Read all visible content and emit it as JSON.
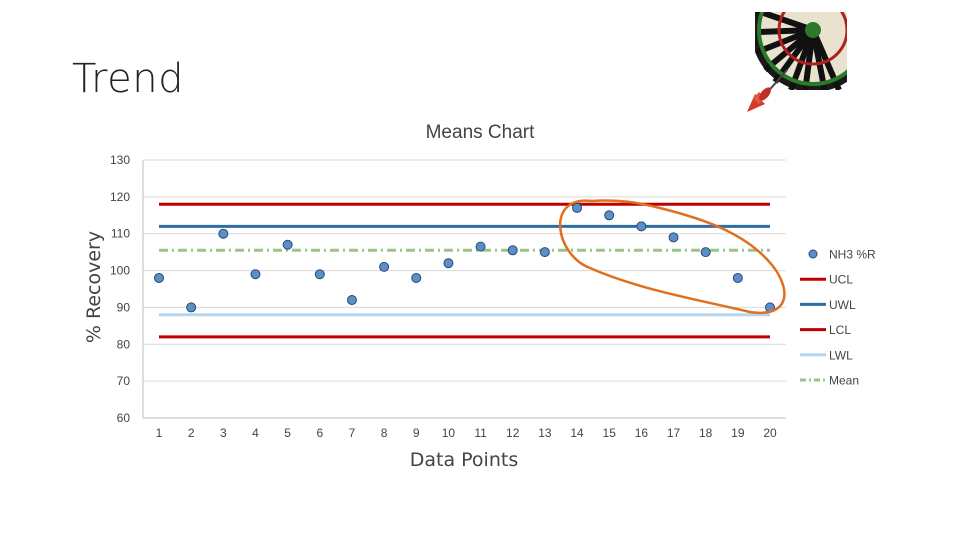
{
  "slide": {
    "title": "Trend"
  },
  "chart_data": {
    "type": "line",
    "title": "Means Chart",
    "xlabel": "Data Points",
    "ylabel": "% Recovery",
    "ylim": [
      60,
      130
    ],
    "yticks": [
      60,
      70,
      80,
      90,
      100,
      110,
      120,
      130
    ],
    "categories": [
      "1",
      "2",
      "3",
      "4",
      "5",
      "6",
      "7",
      "8",
      "9",
      "10",
      "11",
      "12",
      "13",
      "14",
      "15",
      "16",
      "17",
      "18",
      "19",
      "20"
    ],
    "series": [
      {
        "name": "NH3 %R",
        "kind": "points",
        "color": "#5b8fc9",
        "values": [
          98,
          90,
          110,
          99,
          107,
          99,
          92,
          101,
          98,
          102,
          106.5,
          105.5,
          105,
          117,
          115,
          112,
          109,
          105,
          98,
          90
        ]
      },
      {
        "name": "UCL",
        "kind": "hline",
        "color": "#c00000",
        "value": 118
      },
      {
        "name": "UWL",
        "kind": "hline",
        "color": "#2e6da4",
        "value": 112
      },
      {
        "name": "LCL",
        "kind": "hline",
        "color": "#c00000",
        "value": 82
      },
      {
        "name": "LWL",
        "kind": "hline",
        "color": "#b7d3ea",
        "value": 88
      },
      {
        "name": "Mean",
        "kind": "hline",
        "color": "#9bc48a",
        "dashed": true,
        "value": 105.5
      }
    ],
    "legend": "right",
    "annotation": {
      "kind": "ellipse",
      "color": "#e07020",
      "spans_points": "14-20"
    }
  }
}
